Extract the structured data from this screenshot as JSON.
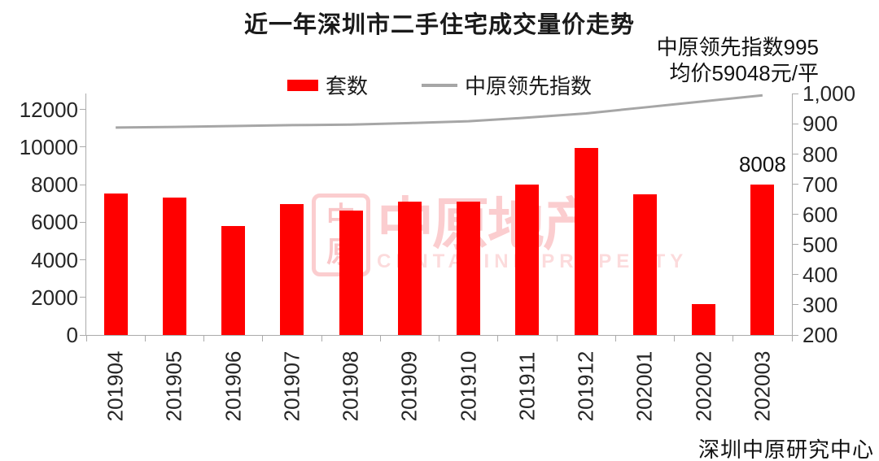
{
  "title": "近一年深圳市二手住宅成交量价走势",
  "annotation": {
    "line1": "中原领先指数995",
    "line2": "均价59048元/平"
  },
  "legend": [
    {
      "label": "套数",
      "type": "bar",
      "color": "#ff0000"
    },
    {
      "label": "中原领先指数",
      "type": "line",
      "color": "#a6a6a6"
    }
  ],
  "watermark": {
    "seal_char_top": "中",
    "seal_char_bottom": "原",
    "big_text": "中原地产",
    "sub_text": "CENTALINE PROPERTY"
  },
  "footer": "深圳中原研究中心",
  "colors": {
    "bar": "#ff0000",
    "line": "#a6a6a6",
    "axis": "#ababab",
    "watermark": "#ed1c24"
  },
  "chart_data": {
    "type": "bar+line",
    "title": "近一年深圳市二手住宅成交量价走势",
    "categories": [
      "201904",
      "201905",
      "201906",
      "201907",
      "201908",
      "201909",
      "201910",
      "201911",
      "201912",
      "202001",
      "202002",
      "202003"
    ],
    "series": [
      {
        "name": "套数",
        "type": "bar",
        "axis": "left",
        "color": "#ff0000",
        "values": [
          7550,
          7330,
          5790,
          6980,
          6630,
          7080,
          7120,
          7990,
          9950,
          7480,
          1660,
          8008
        ]
      },
      {
        "name": "中原领先指数",
        "type": "line",
        "axis": "right",
        "color": "#a6a6a6",
        "values": [
          888,
          890,
          893,
          896,
          898,
          903,
          909,
          921,
          935,
          955,
          975,
          995
        ]
      }
    ],
    "left_axis": {
      "tick_values": [
        0,
        2000,
        4000,
        6000,
        8000,
        10000,
        12000
      ],
      "tick_labels": [
        "0",
        "2000",
        "4000",
        "6000",
        "8000",
        "10000",
        "12000"
      ],
      "min": 0,
      "max": 12857
    },
    "right_axis": {
      "tick_values": [
        200,
        300,
        400,
        500,
        600,
        700,
        800,
        900,
        1000
      ],
      "tick_labels": [
        "200",
        "300",
        "400",
        "500",
        "600",
        "700",
        "800",
        "900",
        "1,000"
      ],
      "min": 200,
      "max": 1001
    },
    "grid": false,
    "legend_position": "top",
    "data_labels": [
      {
        "category": "202003",
        "label": "8008"
      }
    ]
  }
}
